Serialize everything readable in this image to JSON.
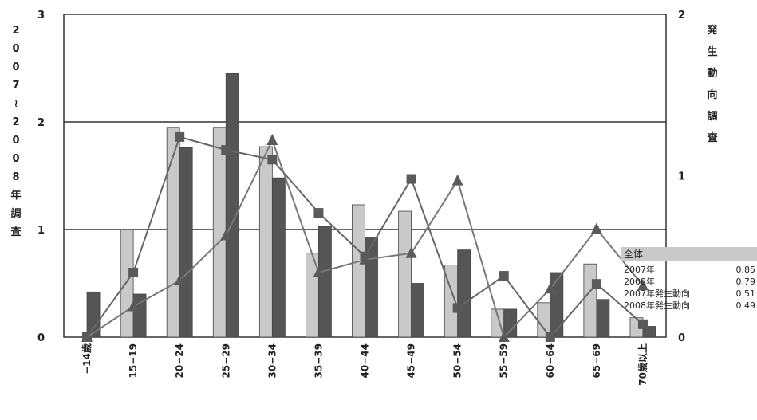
{
  "chart_data": {
    "type": "bar",
    "categories": [
      "−14歳",
      "15−19",
      "20−24",
      "25−29",
      "30−34",
      "35−39",
      "40−44",
      "45−49",
      "50−54",
      "55−59",
      "60−64",
      "65−69",
      "70歳以上"
    ],
    "y_left": {
      "label": "2007〜2008年調査",
      "ticks": [
        "0",
        "1",
        "2",
        "3"
      ],
      "ylim": [
        0,
        3
      ]
    },
    "y_right": {
      "label": "発生動向調査",
      "ticks": [
        "0",
        "1",
        "2"
      ],
      "ylim": [
        0,
        2
      ]
    },
    "grid": true,
    "series": [
      {
        "name": "2007年",
        "kind": "bar",
        "axis": "left",
        "color": "#c9c9c9",
        "values": [
          0,
          1.0,
          1.95,
          1.95,
          1.77,
          0.78,
          1.23,
          1.17,
          0.67,
          0.26,
          0.32,
          0.68,
          0.18
        ]
      },
      {
        "name": "2008年",
        "kind": "bar",
        "axis": "left",
        "color": "#555555",
        "values": [
          0.42,
          0.4,
          1.76,
          2.45,
          1.48,
          1.03,
          0.93,
          0.5,
          0.81,
          0.26,
          0.6,
          0.35,
          0.1
        ]
      },
      {
        "name": "2007年発生動向",
        "kind": "line",
        "marker": "square",
        "axis": "right",
        "color": "#666666",
        "values": [
          0,
          0.4,
          1.24,
          1.16,
          1.1,
          0.77,
          0.5,
          0.98,
          0.18,
          0.38,
          0,
          0.33,
          0.08
        ]
      },
      {
        "name": "2008年発生動向",
        "kind": "line",
        "marker": "triangle",
        "axis": "right",
        "color": "#777777",
        "values": [
          0,
          0.19,
          0.35,
          0.63,
          1.22,
          0.4,
          0.48,
          0.52,
          0.97,
          0,
          0.3,
          0.67,
          0.32
        ]
      }
    ],
    "legend": {
      "title": "全体",
      "position": "right",
      "entries": [
        {
          "label": "2007年",
          "value": "0.85"
        },
        {
          "label": "2008年",
          "value": "0.79"
        },
        {
          "label": "2007年発生動向",
          "value": "0.51"
        },
        {
          "label": "2008年発生動向",
          "value": "0.49"
        }
      ]
    }
  }
}
